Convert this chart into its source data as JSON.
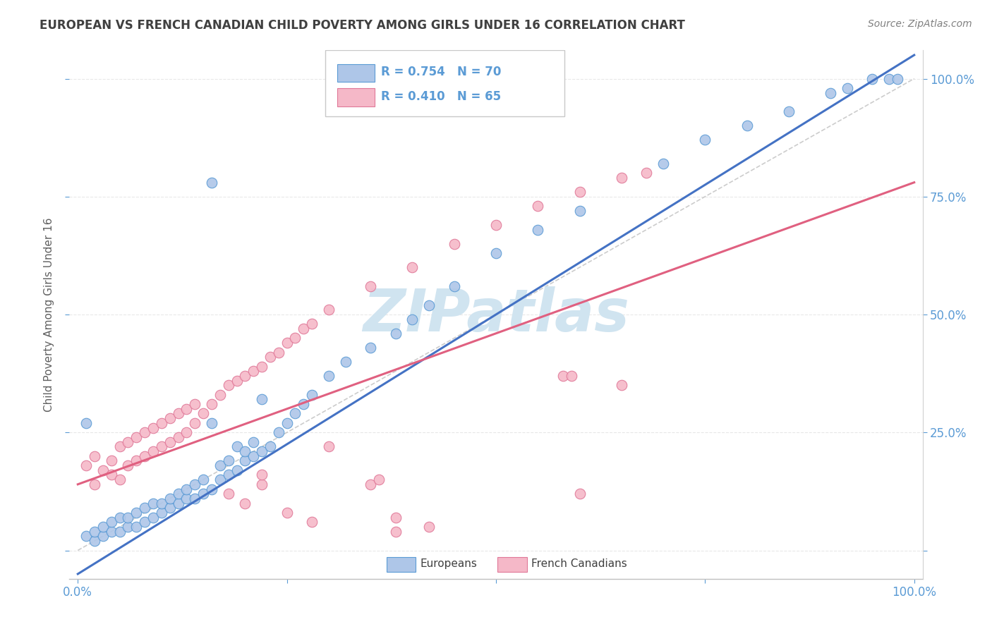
{
  "title": "EUROPEAN VS FRENCH CANADIAN CHILD POVERTY AMONG GIRLS UNDER 16 CORRELATION CHART",
  "source": "Source: ZipAtlas.com",
  "ylabel": "Child Poverty Among Girls Under 16",
  "legend_european": "Europeans",
  "legend_french": "French Canadians",
  "R_european": 0.754,
  "N_european": 70,
  "R_french": 0.41,
  "N_french": 65,
  "blue_fill": "#aec6e8",
  "blue_edge": "#5b9bd5",
  "pink_fill": "#f5b8c8",
  "pink_edge": "#e07898",
  "blue_line": "#4472c4",
  "pink_line": "#e06080",
  "gray_dash": "#c0c0c0",
  "watermark_color": "#d0e4f0",
  "tick_color": "#5b9bd5",
  "grid_color": "#e8e8e8",
  "title_color": "#404040",
  "source_color": "#808080",
  "ylabel_color": "#606060",
  "blue_x": [
    0.01,
    0.02,
    0.02,
    0.03,
    0.03,
    0.04,
    0.04,
    0.05,
    0.05,
    0.06,
    0.06,
    0.07,
    0.07,
    0.08,
    0.08,
    0.09,
    0.09,
    0.1,
    0.1,
    0.11,
    0.11,
    0.12,
    0.12,
    0.13,
    0.13,
    0.14,
    0.14,
    0.15,
    0.15,
    0.16,
    0.16,
    0.17,
    0.17,
    0.18,
    0.18,
    0.19,
    0.19,
    0.2,
    0.2,
    0.21,
    0.21,
    0.22,
    0.22,
    0.23,
    0.24,
    0.25,
    0.26,
    0.27,
    0.28,
    0.3,
    0.32,
    0.35,
    0.38,
    0.4,
    0.42,
    0.45,
    0.5,
    0.55,
    0.6,
    0.7,
    0.75,
    0.8,
    0.85,
    0.9,
    0.92,
    0.95,
    0.97,
    0.98,
    0.16,
    0.01
  ],
  "blue_y": [
    0.03,
    0.02,
    0.04,
    0.03,
    0.05,
    0.04,
    0.06,
    0.04,
    0.07,
    0.05,
    0.07,
    0.05,
    0.08,
    0.06,
    0.09,
    0.07,
    0.1,
    0.08,
    0.1,
    0.09,
    0.11,
    0.1,
    0.12,
    0.11,
    0.13,
    0.11,
    0.14,
    0.12,
    0.15,
    0.13,
    0.27,
    0.15,
    0.18,
    0.16,
    0.19,
    0.17,
    0.22,
    0.19,
    0.21,
    0.2,
    0.23,
    0.21,
    0.32,
    0.22,
    0.25,
    0.27,
    0.29,
    0.31,
    0.33,
    0.37,
    0.4,
    0.43,
    0.46,
    0.49,
    0.52,
    0.56,
    0.63,
    0.68,
    0.72,
    0.82,
    0.87,
    0.9,
    0.93,
    0.97,
    0.98,
    1.0,
    1.0,
    1.0,
    0.78,
    0.27
  ],
  "pink_x": [
    0.01,
    0.02,
    0.02,
    0.03,
    0.04,
    0.04,
    0.05,
    0.05,
    0.06,
    0.06,
    0.07,
    0.07,
    0.08,
    0.08,
    0.09,
    0.09,
    0.1,
    0.1,
    0.11,
    0.11,
    0.12,
    0.12,
    0.13,
    0.13,
    0.14,
    0.14,
    0.15,
    0.16,
    0.17,
    0.18,
    0.19,
    0.2,
    0.21,
    0.22,
    0.23,
    0.24,
    0.25,
    0.26,
    0.27,
    0.28,
    0.3,
    0.35,
    0.4,
    0.45,
    0.5,
    0.55,
    0.6,
    0.65,
    0.68,
    0.65,
    0.35,
    0.36,
    0.2,
    0.22,
    0.25,
    0.28,
    0.18,
    0.22,
    0.3,
    0.38,
    0.58,
    0.59,
    0.6,
    0.38,
    0.42
  ],
  "pink_y": [
    0.18,
    0.14,
    0.2,
    0.17,
    0.16,
    0.19,
    0.15,
    0.22,
    0.18,
    0.23,
    0.19,
    0.24,
    0.2,
    0.25,
    0.21,
    0.26,
    0.22,
    0.27,
    0.23,
    0.28,
    0.24,
    0.29,
    0.25,
    0.3,
    0.27,
    0.31,
    0.29,
    0.31,
    0.33,
    0.35,
    0.36,
    0.37,
    0.38,
    0.39,
    0.41,
    0.42,
    0.44,
    0.45,
    0.47,
    0.48,
    0.51,
    0.56,
    0.6,
    0.65,
    0.69,
    0.73,
    0.76,
    0.79,
    0.8,
    0.35,
    0.14,
    0.15,
    0.1,
    0.14,
    0.08,
    0.06,
    0.12,
    0.16,
    0.22,
    0.07,
    0.37,
    0.37,
    0.12,
    0.04,
    0.05
  ],
  "blue_line_x": [
    0.0,
    1.0
  ],
  "blue_line_y": [
    -0.05,
    1.05
  ],
  "pink_line_x": [
    0.0,
    1.0
  ],
  "pink_line_y": [
    0.14,
    0.78
  ],
  "gray_line_x": [
    0.0,
    1.0
  ],
  "gray_line_y": [
    0.0,
    1.0
  ],
  "xlim": [
    -0.01,
    1.01
  ],
  "ylim": [
    -0.06,
    1.06
  ],
  "xticks": [
    0.0,
    0.25,
    0.5,
    0.75,
    1.0
  ],
  "xticklabels_show": [
    "0.0%",
    "",
    "",
    "",
    "100.0%"
  ],
  "yticks": [
    0.0,
    0.25,
    0.5,
    0.75,
    1.0
  ],
  "yticklabels_right": [
    "",
    "25.0%",
    "50.0%",
    "75.0%",
    "100.0%"
  ]
}
